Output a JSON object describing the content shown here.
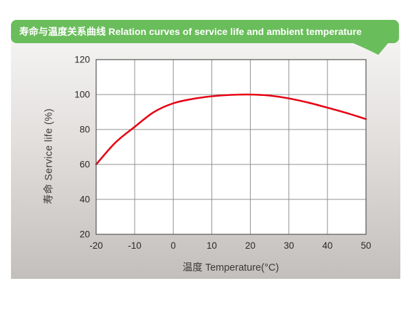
{
  "banner": {
    "text": "寿命与温度关系曲线 Relation curves of service life and ambient temperature",
    "bg_color": "#6abd5b",
    "text_color": "#ffffff"
  },
  "chart_data": {
    "type": "line",
    "title": "寿命与温度关系曲线 Relation curves of service life and ambient temperature",
    "xlabel": "温度 Temperature(°C)",
    "ylabel": "寿命 Service life (%)",
    "x_ticks": [
      "-20",
      "-10",
      "0",
      "10",
      "20",
      "30",
      "40",
      "50"
    ],
    "y_ticks": [
      "20",
      "40",
      "60",
      "80",
      "100",
      "120"
    ],
    "xlim": [
      -20,
      50
    ],
    "ylim": [
      20,
      120
    ],
    "grid": "on",
    "legend": "none",
    "plot_bg_color": "#ffffff",
    "grid_color": "#8f8f8f",
    "border_color": "#5f5f5f",
    "series": [
      {
        "name": "service-life-vs-temperature",
        "color": "#e60012",
        "x": [
          -20,
          -15,
          -10,
          -5,
          0,
          5,
          10,
          15,
          20,
          25,
          30,
          35,
          40,
          45,
          50
        ],
        "y": [
          60,
          72.5,
          81.5,
          90,
          95,
          97.5,
          99,
          99.8,
          100,
          99.4,
          97.8,
          95.4,
          92.5,
          89.4,
          86
        ]
      }
    ]
  }
}
